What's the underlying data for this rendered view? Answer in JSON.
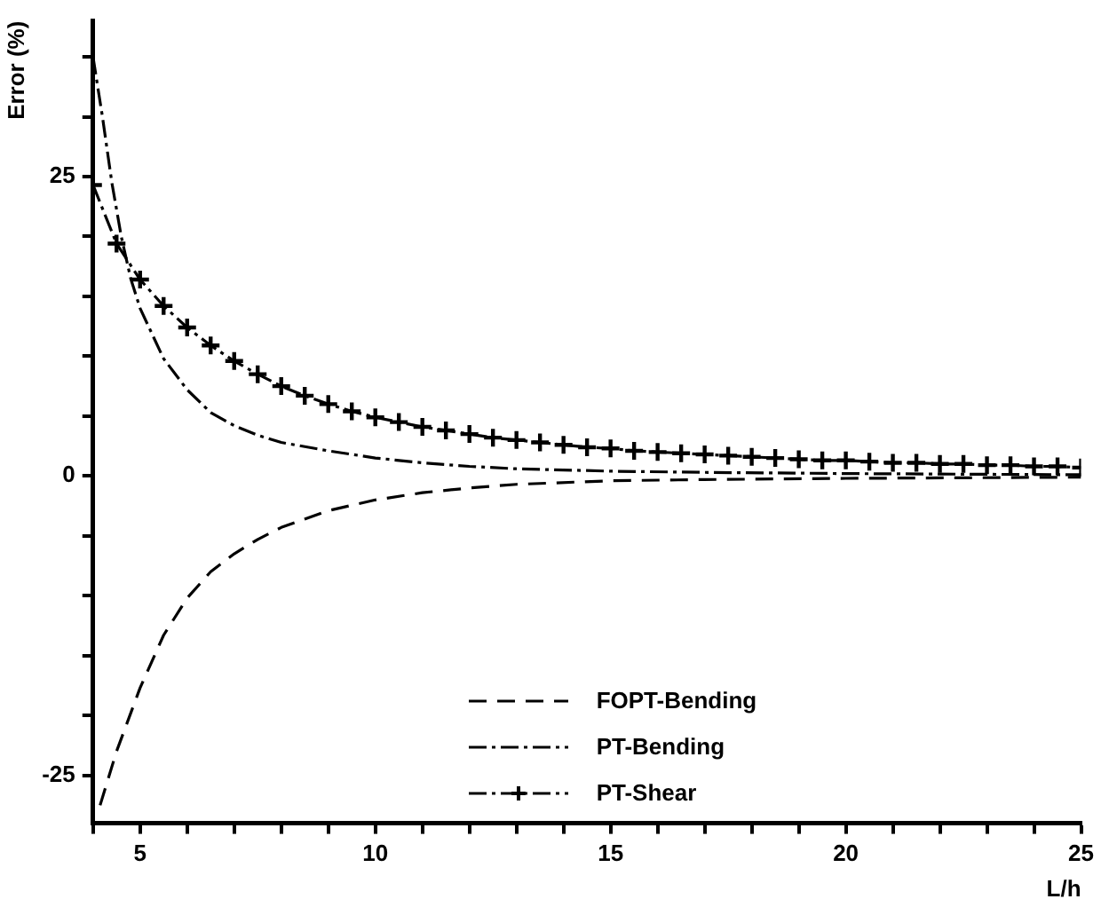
{
  "chart_data": {
    "type": "line",
    "xlabel": "L/h",
    "ylabel": "Error (%)",
    "xlim": [
      4,
      25
    ],
    "xticks": [
      {
        "value": 4,
        "label": null
      },
      5,
      {
        "value": 6,
        "label": null
      },
      {
        "value": 7,
        "label": null
      },
      {
        "value": 8,
        "label": null
      },
      {
        "value": 9,
        "label": null
      },
      10,
      {
        "value": 11,
        "label": null
      },
      {
        "value": 12,
        "label": null
      },
      {
        "value": 13,
        "label": null
      },
      {
        "value": 14,
        "label": null
      },
      15,
      {
        "value": 16,
        "label": null
      },
      {
        "value": 17,
        "label": null
      },
      {
        "value": 18,
        "label": null
      },
      {
        "value": 19,
        "label": null
      },
      20,
      {
        "value": 21,
        "label": null
      },
      {
        "value": 22,
        "label": null
      },
      {
        "value": 23,
        "label": null
      },
      {
        "value": 24,
        "label": null
      },
      25
    ],
    "ylim": [
      -29,
      38
    ],
    "yticks": [
      -25,
      {
        "value": -20,
        "label": null
      },
      {
        "value": -15,
        "label": null
      },
      {
        "value": -10,
        "label": null
      },
      {
        "value": -5,
        "label": null
      },
      0,
      {
        "value": 5,
        "label": null
      },
      {
        "value": 10,
        "label": null
      },
      {
        "value": 15,
        "label": null
      },
      {
        "value": 20,
        "label": null
      },
      25,
      {
        "value": 30,
        "label": null
      },
      {
        "value": 35,
        "label": null
      }
    ],
    "grid": false,
    "legend": "bottom right",
    "series": [
      {
        "name": "FOPT-Bending",
        "color": "#000000",
        "line_style": "dashed",
        "marker": "none",
        "x": [
          4.15,
          4.5,
          5,
          5.5,
          6,
          6.5,
          7,
          7.5,
          8,
          9,
          10,
          11,
          12,
          13,
          15,
          17,
          20,
          25
        ],
        "values": [
          -27.5,
          -23,
          -17.7,
          -13.3,
          -10.2,
          -8,
          -6.5,
          -5.3,
          -4.3,
          -2.9,
          -2,
          -1.4,
          -1,
          -0.7,
          -0.4,
          -0.3,
          -0.2,
          -0.1
        ]
      },
      {
        "name": "PT-Bending",
        "color": "#000000",
        "line_style": "dashdot",
        "marker": "none",
        "x": [
          4,
          4.2,
          4.4,
          4.6,
          4.8,
          5,
          5.5,
          6,
          6.5,
          7,
          7.5,
          8,
          9,
          10,
          11,
          12,
          13,
          15,
          17,
          20,
          25
        ],
        "values": [
          35,
          30,
          24.5,
          20,
          16.5,
          14,
          9.8,
          7.2,
          5.3,
          4.2,
          3.4,
          2.8,
          2.1,
          1.5,
          1.1,
          0.8,
          0.6,
          0.4,
          0.3,
          0.2,
          0.1
        ]
      },
      {
        "name": "PT-Shear",
        "color": "#000000",
        "line_style": "dashdot",
        "marker": "cross",
        "x": [
          4,
          4.5,
          5,
          5.5,
          6,
          6.5,
          7,
          7.5,
          8,
          8.5,
          9,
          9.5,
          10,
          10.5,
          11,
          11.5,
          12,
          12.5,
          13,
          13.5,
          14,
          14.5,
          15,
          15.5,
          16,
          16.5,
          17,
          17.5,
          18,
          18.5,
          19,
          19.5,
          20,
          20.5,
          21,
          21.5,
          22,
          22.5,
          23,
          23.5,
          24,
          24.5,
          25
        ],
        "values": [
          24.3,
          19.4,
          16.4,
          14.2,
          12.4,
          10.9,
          9.6,
          8.5,
          7.5,
          6.7,
          6,
          5.4,
          4.9,
          4.5,
          4.1,
          3.8,
          3.5,
          3.2,
          3,
          2.8,
          2.6,
          2.4,
          2.3,
          2.1,
          2,
          1.9,
          1.8,
          1.7,
          1.6,
          1.5,
          1.4,
          1.3,
          1.3,
          1.2,
          1.1,
          1.1,
          1,
          1,
          0.9,
          0.9,
          0.8,
          0.8,
          0.7
        ]
      }
    ]
  }
}
